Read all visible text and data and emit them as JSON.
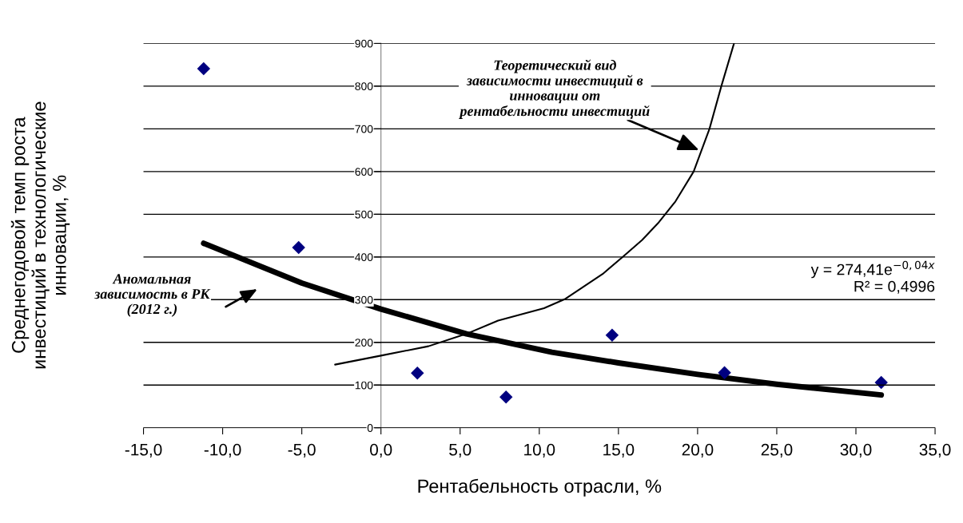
{
  "chart_data": {
    "type": "scatter",
    "xlabel": "Рентабельность отрасли, %",
    "ylabel": "Среднегодовой темп роста\nинвестиций в технологические\nинновации, %",
    "xlim": [
      -15,
      35
    ],
    "xticks": [
      {
        "value": -15,
        "label": "-15,0"
      },
      {
        "value": -10,
        "label": "-10,0"
      },
      {
        "value": -5,
        "label": "-5,0"
      },
      {
        "value": 0,
        "label": "0,0"
      },
      {
        "value": 5,
        "label": "5,0"
      },
      {
        "value": 10,
        "label": "10,0"
      },
      {
        "value": 15,
        "label": "15,0"
      },
      {
        "value": 20,
        "label": "20,0"
      },
      {
        "value": 25,
        "label": "25,0"
      },
      {
        "value": 30,
        "label": "30,0"
      },
      {
        "value": 35,
        "label": "35,0"
      }
    ],
    "ylim": [
      0,
      900
    ],
    "yticks": [
      0,
      100,
      200,
      300,
      400,
      500,
      600,
      700,
      800,
      900
    ],
    "grid": "y",
    "series": [
      {
        "color": "#000080",
        "marker": "diamond",
        "x": [
          -11.2,
          -5.2,
          2.3,
          7.9,
          14.6,
          21.7,
          31.6
        ],
        "values": [
          841,
          422,
          128,
          72,
          217,
          129,
          106
        ]
      },
      {
        "type": "line",
        "color": "#000000",
        "marker": "none",
        "line_style": "solid",
        "x": [
          -11.2,
          -5.0,
          0,
          5.4,
          10.8,
          15,
          20,
          25,
          31.6
        ],
        "values": [
          432,
          339,
          278,
          220,
          177,
          152,
          125,
          102,
          77
        ]
      },
      {
        "type": "line",
        "color": "#000000",
        "marker": "none",
        "line_style": "solid",
        "x": [
          -2.9,
          0,
          3,
          5.4,
          7.4,
          10.3,
          11.6,
          14,
          15.3,
          16.5,
          17.5,
          18.6,
          19.75,
          20.75,
          21.5,
          22.3
        ],
        "values": [
          148,
          169,
          191,
          220,
          251,
          280,
          301,
          360,
          401,
          440,
          479,
          530,
          600,
          700,
          800,
          900
        ]
      }
    ],
    "annotations": [
      {
        "text": "Теоретический вид\nзависимости инвестиций в\nинновации от\nрентабельности инвестиций",
        "x": 20.1,
        "y": 650
      },
      "Аномальная\nзависимость в РК\n(2012 г.)",
      "y = 274,41e$^{−0,04x}$\nR² = 0,4996"
    ]
  }
}
